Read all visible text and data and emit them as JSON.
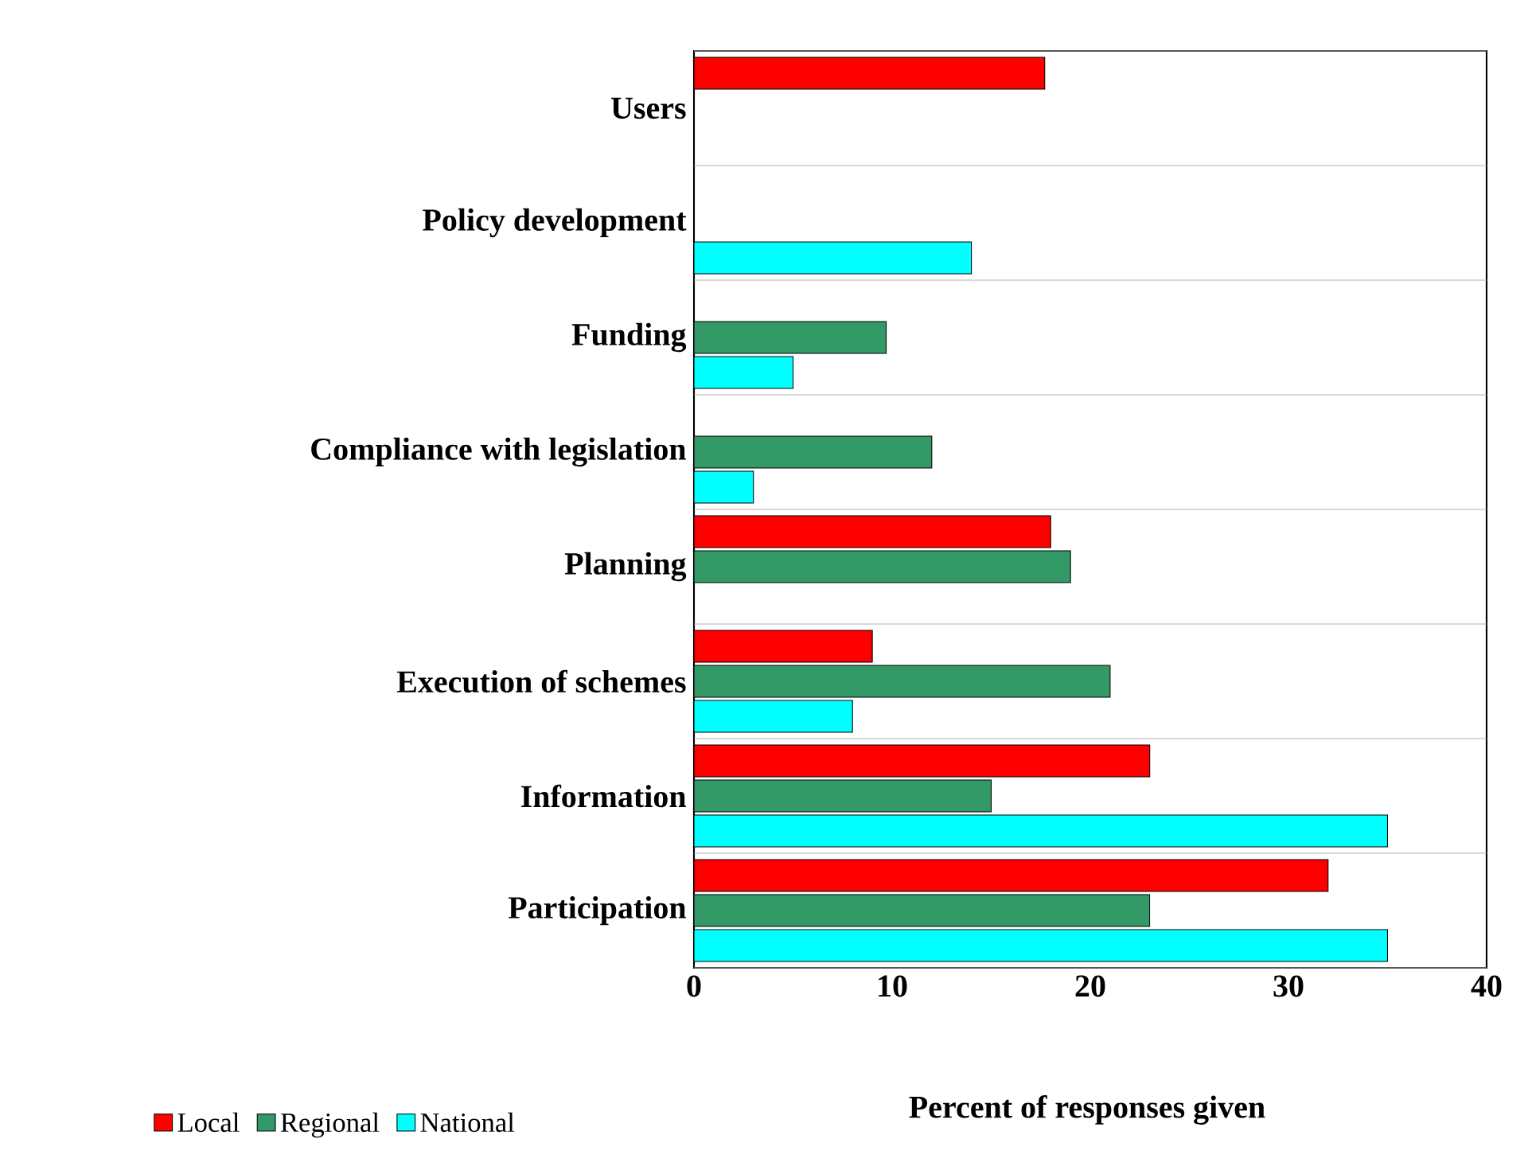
{
  "chart_data": {
    "type": "bar",
    "orientation": "horizontal",
    "xlabel": "Percent of responses given",
    "categories": [
      "Users",
      "Policy development",
      "Funding",
      "Compliance with legislation",
      "Planning",
      "Execution of schemes",
      "Information",
      "Participation"
    ],
    "series": [
      {
        "name": "Local",
        "color": "#ff0000",
        "values": [
          17.7,
          null,
          null,
          null,
          18,
          9,
          23,
          32
        ]
      },
      {
        "name": "Regional",
        "color": "#339966",
        "values": [
          null,
          null,
          9.7,
          12,
          19,
          21,
          15,
          23
        ]
      },
      {
        "name": "National",
        "color": "#00ffff",
        "values": [
          null,
          14,
          5,
          3,
          null,
          8,
          35,
          35
        ]
      }
    ],
    "xlim": [
      0,
      40
    ],
    "xticks": [
      0,
      10,
      20,
      30,
      40
    ],
    "grid": "y",
    "legend": "bottom left"
  }
}
